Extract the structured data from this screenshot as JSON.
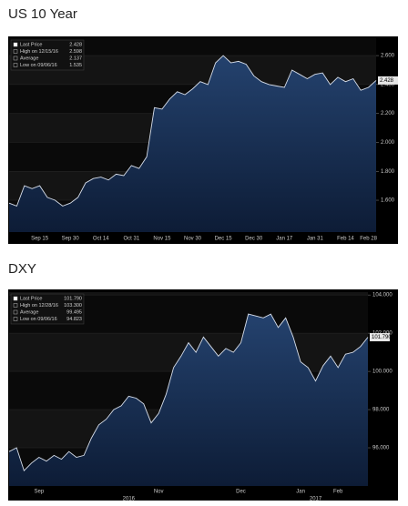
{
  "chart_data": [
    {
      "type": "area",
      "title": "US 10 Year",
      "categories": [
        null,
        null,
        null,
        null,
        "Sep 15",
        null,
        null,
        null,
        "Sep 30",
        null,
        null,
        null,
        "Oct 14",
        null,
        null,
        null,
        "Oct 31",
        null,
        null,
        null,
        "Nov 15",
        null,
        null,
        null,
        "Nov 30",
        null,
        null,
        null,
        "Dec 15",
        null,
        null,
        null,
        "Dec 30",
        null,
        null,
        null,
        "Jan 17",
        null,
        null,
        null,
        "Jan 31",
        null,
        null,
        null,
        "Feb 14",
        null,
        null,
        "Feb 28",
        null
      ],
      "series": [
        {
          "name": "Last Price",
          "color": "#d6dde9",
          "values": [
            1.58,
            1.56,
            1.7,
            1.68,
            1.7,
            1.62,
            1.6,
            1.56,
            1.58,
            1.62,
            1.72,
            1.75,
            1.76,
            1.74,
            1.78,
            1.77,
            1.84,
            1.82,
            1.9,
            2.24,
            2.23,
            2.3,
            2.35,
            2.33,
            2.37,
            2.42,
            2.4,
            2.55,
            2.6,
            2.55,
            2.56,
            2.54,
            2.46,
            2.42,
            2.4,
            2.39,
            2.38,
            2.5,
            2.47,
            2.44,
            2.47,
            2.48,
            2.4,
            2.45,
            2.42,
            2.44,
            2.36,
            2.38,
            2.428
          ]
        }
      ],
      "stats": [
        {
          "name": "Last Price",
          "value": 2.428
        },
        {
          "name": "High on 12/15/16",
          "value": 2.598
        },
        {
          "name": "Average",
          "value": 2.137
        },
        {
          "name": "Low on 09/06/16",
          "value": 1.535
        }
      ],
      "ylim": [
        1.38,
        2.72
      ],
      "yticks": [
        {
          "value": 1.6,
          "label": "1.600"
        },
        {
          "value": 1.8,
          "label": "1.800"
        },
        {
          "value": 2.0,
          "label": "2.000"
        },
        {
          "value": 2.2,
          "label": "2.200"
        },
        {
          "value": 2.4,
          "label": "2.400"
        },
        {
          "value": 2.6,
          "label": "2.600"
        }
      ],
      "grid": true
    },
    {
      "type": "area",
      "title": "DXY",
      "categories": [
        null,
        null,
        null,
        null,
        "Sep",
        null,
        null,
        null,
        null,
        null,
        null,
        null,
        null,
        null,
        null,
        null,
        null,
        null,
        null,
        null,
        "Nov",
        null,
        null,
        null,
        null,
        null,
        null,
        null,
        null,
        null,
        null,
        "Dec",
        null,
        null,
        null,
        null,
        null,
        null,
        null,
        "Jan",
        null,
        null,
        null,
        null,
        "Feb",
        null,
        null,
        null,
        null
      ],
      "category_groups": [
        null,
        null,
        null,
        null,
        null,
        null,
        null,
        null,
        null,
        null,
        null,
        null,
        null,
        null,
        null,
        null,
        "2016",
        null,
        null,
        null,
        null,
        null,
        null,
        null,
        null,
        null,
        null,
        null,
        null,
        null,
        null,
        null,
        null,
        null,
        null,
        null,
        null,
        null,
        null,
        null,
        null,
        "2017",
        null,
        null,
        null,
        null,
        null,
        null,
        null
      ],
      "series": [
        {
          "name": "Last Price",
          "color": "#d6dde9",
          "values": [
            95.8,
            96.0,
            94.8,
            95.2,
            95.5,
            95.3,
            95.6,
            95.4,
            95.8,
            95.5,
            95.6,
            96.5,
            97.2,
            97.5,
            98.0,
            98.2,
            98.7,
            98.6,
            98.3,
            97.3,
            97.8,
            98.8,
            100.2,
            100.8,
            101.5,
            101.0,
            101.8,
            101.3,
            100.8,
            101.2,
            101.0,
            101.5,
            103.0,
            102.9,
            102.8,
            103.0,
            102.3,
            102.8,
            101.8,
            100.5,
            100.2,
            99.5,
            100.3,
            100.8,
            100.2,
            100.9,
            101.0,
            101.3,
            101.79
          ]
        }
      ],
      "stats": [
        {
          "name": "Last Price",
          "value": 101.79,
          "value_label": "101.790"
        },
        {
          "name": "High on 12/28/16",
          "value": 103.3,
          "value_label": "103.300"
        },
        {
          "name": "Average",
          "value": 99.495
        },
        {
          "name": "Low on 09/06/16",
          "value": 94.823
        }
      ],
      "ylim": [
        94.0,
        104.15
      ],
      "yticks": [
        {
          "value": 96,
          "label": "96.000"
        },
        {
          "value": 98,
          "label": "98.000"
        },
        {
          "value": 100,
          "label": "100.000"
        },
        {
          "value": 102,
          "label": "102.000"
        },
        {
          "value": 104,
          "label": "104.000"
        }
      ],
      "grid": true
    }
  ]
}
